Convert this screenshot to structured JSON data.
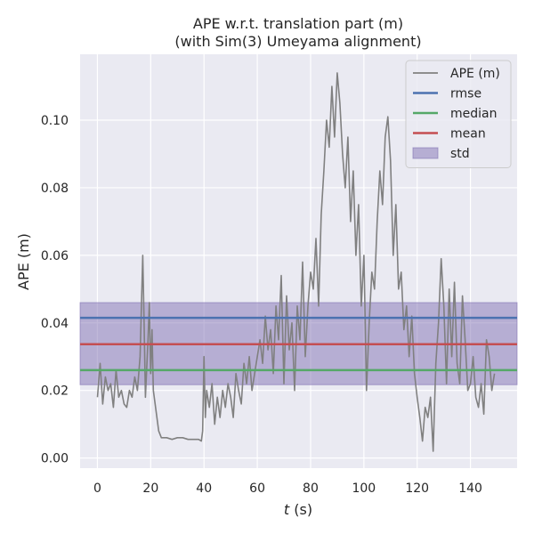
{
  "chart_data": {
    "type": "line",
    "title_line1": "APE w.r.t. translation part (m)",
    "title_line2": "(with Sim(3) Umeyama alignment)",
    "xlabel_var": "t",
    "xlabel_unit": " (s)",
    "ylabel": "APE (m)",
    "xlim": [
      -6.5,
      157.5
    ],
    "ylim": [
      -0.003,
      0.1195
    ],
    "x_ticks": [
      0,
      20,
      40,
      60,
      80,
      100,
      120,
      140
    ],
    "x_tick_labels": [
      "0",
      "20",
      "40",
      "60",
      "80",
      "100",
      "120",
      "140"
    ],
    "y_ticks": [
      0.0,
      0.02,
      0.04,
      0.06,
      0.08,
      0.1
    ],
    "y_tick_labels": [
      "0.00",
      "0.02",
      "0.04",
      "0.06",
      "0.08",
      "0.10"
    ],
    "grid": true,
    "legend_position": "top-right",
    "stats": {
      "rmse": 0.0415,
      "median": 0.026,
      "mean": 0.0337,
      "std_low": 0.0217,
      "std_high": 0.046
    },
    "colors": {
      "background": "#eaeaf2",
      "grid": "#ffffff",
      "ape": "#808080",
      "rmse": "#4c72b0",
      "median": "#55a868",
      "mean": "#c44e52",
      "std": "#8172b3"
    },
    "legend": [
      {
        "key": "ape",
        "label": "APE (m)",
        "kind": "line"
      },
      {
        "key": "rmse",
        "label": "rmse",
        "kind": "line"
      },
      {
        "key": "median",
        "label": "median",
        "kind": "line"
      },
      {
        "key": "mean",
        "label": "mean",
        "kind": "line"
      },
      {
        "key": "std",
        "label": "std",
        "kind": "patch"
      }
    ],
    "series": [
      {
        "name": "APE (m)",
        "x": [
          0,
          1,
          2,
          3,
          4,
          5,
          6,
          7,
          8,
          9,
          10,
          11,
          12,
          13,
          14,
          15,
          16,
          16.5,
          17,
          17.5,
          18,
          19,
          19.5,
          20,
          20.5,
          21,
          22,
          23,
          24,
          26,
          28,
          30,
          32,
          34,
          36,
          38,
          39,
          39.5,
          40,
          40.5,
          41,
          42,
          43,
          44,
          45,
          46,
          47,
          48,
          49,
          50,
          51,
          52,
          53,
          54,
          55,
          56,
          57,
          58,
          59,
          60,
          61,
          62,
          63,
          64,
          65,
          66,
          67,
          68,
          69,
          70,
          71,
          72,
          73,
          74,
          75,
          76,
          77,
          78,
          79,
          80,
          81,
          82,
          83,
          84,
          85,
          86,
          87,
          88,
          89,
          90,
          91,
          92,
          93,
          94,
          95,
          96,
          97,
          98,
          99,
          100,
          101,
          102,
          103,
          104,
          105,
          106,
          107,
          108,
          109,
          110,
          111,
          112,
          113,
          114,
          115,
          116,
          117,
          118,
          119,
          120,
          121,
          122,
          123,
          124,
          125,
          126,
          127,
          128,
          129,
          130,
          131,
          132,
          133,
          134,
          135,
          136,
          137,
          138,
          139,
          140,
          141,
          142,
          143,
          144,
          145,
          146,
          147,
          148,
          149
        ],
        "y": [
          0.018,
          0.028,
          0.016,
          0.024,
          0.02,
          0.022,
          0.015,
          0.026,
          0.018,
          0.02,
          0.016,
          0.015,
          0.02,
          0.018,
          0.024,
          0.02,
          0.03,
          0.045,
          0.06,
          0.04,
          0.018,
          0.035,
          0.046,
          0.025,
          0.038,
          0.02,
          0.014,
          0.008,
          0.006,
          0.006,
          0.0055,
          0.006,
          0.006,
          0.0055,
          0.0055,
          0.0055,
          0.005,
          0.008,
          0.03,
          0.012,
          0.02,
          0.015,
          0.022,
          0.01,
          0.018,
          0.012,
          0.02,
          0.015,
          0.022,
          0.018,
          0.012,
          0.025,
          0.02,
          0.016,
          0.028,
          0.022,
          0.03,
          0.02,
          0.025,
          0.03,
          0.035,
          0.028,
          0.042,
          0.032,
          0.038,
          0.025,
          0.045,
          0.035,
          0.054,
          0.022,
          0.048,
          0.032,
          0.04,
          0.02,
          0.045,
          0.035,
          0.058,
          0.03,
          0.045,
          0.055,
          0.05,
          0.065,
          0.045,
          0.072,
          0.085,
          0.1,
          0.092,
          0.11,
          0.095,
          0.114,
          0.105,
          0.09,
          0.08,
          0.095,
          0.07,
          0.085,
          0.06,
          0.075,
          0.045,
          0.06,
          0.02,
          0.04,
          0.055,
          0.05,
          0.07,
          0.085,
          0.075,
          0.095,
          0.101,
          0.088,
          0.06,
          0.075,
          0.05,
          0.055,
          0.038,
          0.045,
          0.03,
          0.042,
          0.025,
          0.018,
          0.012,
          0.005,
          0.015,
          0.012,
          0.018,
          0.002,
          0.028,
          0.04,
          0.059,
          0.045,
          0.022,
          0.05,
          0.03,
          0.052,
          0.028,
          0.022,
          0.048,
          0.035,
          0.02,
          0.022,
          0.03,
          0.018,
          0.015,
          0.022,
          0.013,
          0.035,
          0.03,
          0.02,
          0.025
        ]
      }
    ]
  }
}
